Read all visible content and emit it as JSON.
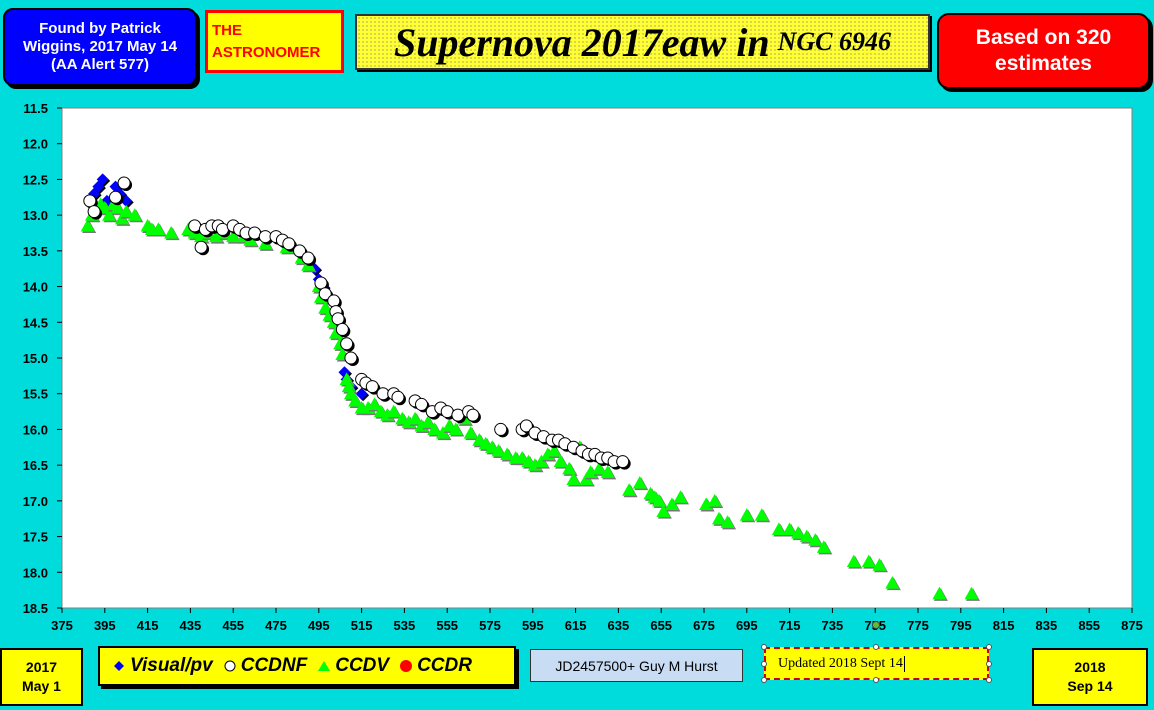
{
  "header": {
    "found_line1": "Found by Patrick",
    "found_line2": "Wiggins, 2017 May 14",
    "found_line3": "(AA Alert 577)",
    "astro_line1": "THE",
    "astro_line2": "ASTRONOMER",
    "title_main": "Supernova 2017eaw in",
    "title_small": "NGC 6946",
    "based_line1": "Based on 320",
    "based_line2": "estimates"
  },
  "footer": {
    "start_year": "2017",
    "start_day": "May 1",
    "end_year": "2018",
    "end_day": "Sep 14",
    "jd_label": "JD2457500+ Guy M Hurst",
    "updated_label": "Updated 2018 Sept 14"
  },
  "legend": [
    {
      "label": "Visual/pv",
      "marker": "diamond",
      "color": "#0000ff"
    },
    {
      "label": "CCDNF",
      "marker": "circle-open",
      "color": "#ffffff"
    },
    {
      "label": "CCDV",
      "marker": "triangle",
      "color": "#00ff00"
    },
    {
      "label": "CCDR",
      "marker": "circle",
      "color": "#ff0000"
    }
  ],
  "colors": {
    "background": "#00dcdc",
    "plot_bg": "#ffffff"
  },
  "chart_data": {
    "type": "scatter",
    "xlim": [
      375,
      875
    ],
    "ylim": [
      18.5,
      11.5
    ],
    "xticks": [
      375,
      395,
      415,
      435,
      455,
      475,
      495,
      515,
      535,
      555,
      575,
      595,
      615,
      635,
      655,
      675,
      695,
      715,
      735,
      755,
      775,
      795,
      815,
      835,
      855,
      875
    ],
    "yticks": [
      11.5,
      12.0,
      12.5,
      13.0,
      13.5,
      14.0,
      14.5,
      15.0,
      15.5,
      16.0,
      16.5,
      17.0,
      17.5,
      18.0,
      18.5
    ],
    "xlabel": "",
    "ylabel": "",
    "grid": false,
    "series": [
      {
        "name": "Visual/pv",
        "marker": "diamond",
        "color": "#0000ff",
        "points": [
          [
            390,
            12.7
          ],
          [
            392,
            12.6
          ],
          [
            394,
            12.5
          ],
          [
            396,
            12.8
          ],
          [
            398,
            12.9
          ],
          [
            400,
            12.6
          ],
          [
            402,
            12.7
          ],
          [
            405,
            12.8
          ],
          [
            493,
            13.75
          ],
          [
            495,
            13.9
          ],
          [
            497,
            14.0
          ],
          [
            507,
            15.2
          ],
          [
            508,
            15.3
          ],
          [
            510,
            15.4
          ],
          [
            515,
            15.5
          ]
        ]
      },
      {
        "name": "CCDNF",
        "marker": "circle-open",
        "color": "#ffffff",
        "points": [
          [
            388,
            12.8
          ],
          [
            390,
            12.95
          ],
          [
            400,
            12.75
          ],
          [
            404,
            12.55
          ],
          [
            437,
            13.15
          ],
          [
            440,
            13.45
          ],
          [
            442,
            13.2
          ],
          [
            445,
            13.15
          ],
          [
            448,
            13.15
          ],
          [
            450,
            13.2
          ],
          [
            455,
            13.15
          ],
          [
            458,
            13.2
          ],
          [
            461,
            13.25
          ],
          [
            465,
            13.25
          ],
          [
            470,
            13.3
          ],
          [
            475,
            13.3
          ],
          [
            478,
            13.35
          ],
          [
            481,
            13.4
          ],
          [
            486,
            13.5
          ],
          [
            490,
            13.6
          ],
          [
            496,
            13.95
          ],
          [
            498,
            14.1
          ],
          [
            502,
            14.2
          ],
          [
            503,
            14.35
          ],
          [
            504,
            14.45
          ],
          [
            506,
            14.6
          ],
          [
            508,
            14.8
          ],
          [
            510,
            15.0
          ],
          [
            515,
            15.3
          ],
          [
            517,
            15.35
          ],
          [
            520,
            15.4
          ],
          [
            525,
            15.5
          ],
          [
            530,
            15.5
          ],
          [
            532,
            15.55
          ],
          [
            540,
            15.6
          ],
          [
            543,
            15.65
          ],
          [
            548,
            15.75
          ],
          [
            552,
            15.7
          ],
          [
            555,
            15.75
          ],
          [
            560,
            15.8
          ],
          [
            565,
            15.75
          ],
          [
            567,
            15.8
          ],
          [
            580,
            16.0
          ],
          [
            590,
            16.0
          ],
          [
            592,
            15.95
          ],
          [
            596,
            16.05
          ],
          [
            600,
            16.1
          ],
          [
            604,
            16.15
          ],
          [
            607,
            16.15
          ],
          [
            610,
            16.2
          ],
          [
            614,
            16.25
          ],
          [
            618,
            16.3
          ],
          [
            621,
            16.35
          ],
          [
            624,
            16.35
          ],
          [
            627,
            16.4
          ],
          [
            630,
            16.4
          ],
          [
            633,
            16.45
          ],
          [
            637,
            16.45
          ]
        ]
      },
      {
        "name": "CCDV",
        "marker": "triangle",
        "color": "#00ff00",
        "points": [
          [
            387,
            13.15
          ],
          [
            389,
            13.0
          ],
          [
            391,
            12.9
          ],
          [
            393,
            12.85
          ],
          [
            395,
            12.9
          ],
          [
            397,
            13.0
          ],
          [
            399,
            12.85
          ],
          [
            401,
            12.9
          ],
          [
            403,
            13.05
          ],
          [
            405,
            12.95
          ],
          [
            409,
            13.0
          ],
          [
            415,
            13.15
          ],
          [
            417,
            13.2
          ],
          [
            420,
            13.2
          ],
          [
            426,
            13.25
          ],
          [
            434,
            13.2
          ],
          [
            437,
            13.25
          ],
          [
            440,
            13.3
          ],
          [
            443,
            13.25
          ],
          [
            447,
            13.3
          ],
          [
            451,
            13.25
          ],
          [
            455,
            13.3
          ],
          [
            460,
            13.3
          ],
          [
            463,
            13.35
          ],
          [
            470,
            13.4
          ],
          [
            480,
            13.45
          ],
          [
            487,
            13.6
          ],
          [
            490,
            13.7
          ],
          [
            495,
            14.0
          ],
          [
            496,
            14.15
          ],
          [
            498,
            14.3
          ],
          [
            500,
            14.4
          ],
          [
            502,
            14.5
          ],
          [
            503,
            14.65
          ],
          [
            505,
            14.8
          ],
          [
            506,
            14.95
          ],
          [
            508,
            15.3
          ],
          [
            509,
            15.4
          ],
          [
            510,
            15.5
          ],
          [
            512,
            15.6
          ],
          [
            515,
            15.7
          ],
          [
            518,
            15.7
          ],
          [
            521,
            15.65
          ],
          [
            524,
            15.75
          ],
          [
            527,
            15.8
          ],
          [
            530,
            15.75
          ],
          [
            534,
            15.85
          ],
          [
            537,
            15.9
          ],
          [
            540,
            15.85
          ],
          [
            543,
            15.95
          ],
          [
            546,
            15.9
          ],
          [
            549,
            16.0
          ],
          [
            553,
            16.05
          ],
          [
            556,
            15.95
          ],
          [
            559,
            16.0
          ],
          [
            563,
            15.85
          ],
          [
            566,
            16.05
          ],
          [
            570,
            16.15
          ],
          [
            573,
            16.2
          ],
          [
            576,
            16.25
          ],
          [
            579,
            16.3
          ],
          [
            583,
            16.35
          ],
          [
            587,
            16.4
          ],
          [
            590,
            16.4
          ],
          [
            593,
            16.45
          ],
          [
            596,
            16.5
          ],
          [
            599,
            16.45
          ],
          [
            602,
            16.35
          ],
          [
            605,
            16.3
          ],
          [
            608,
            16.45
          ],
          [
            612,
            16.55
          ],
          [
            614,
            16.7
          ],
          [
            617,
            16.25
          ],
          [
            620,
            16.7
          ],
          [
            622,
            16.6
          ],
          [
            626,
            16.55
          ],
          [
            630,
            16.6
          ],
          [
            640,
            16.85
          ],
          [
            645,
            16.75
          ],
          [
            650,
            16.9
          ],
          [
            652,
            16.95
          ],
          [
            654,
            17.0
          ],
          [
            656,
            17.15
          ],
          [
            660,
            17.05
          ],
          [
            664,
            16.95
          ],
          [
            676,
            17.05
          ],
          [
            680,
            17.0
          ],
          [
            682,
            17.25
          ],
          [
            686,
            17.3
          ],
          [
            695,
            17.2
          ],
          [
            702,
            17.2
          ],
          [
            710,
            17.4
          ],
          [
            715,
            17.4
          ],
          [
            719,
            17.45
          ],
          [
            723,
            17.5
          ],
          [
            727,
            17.55
          ],
          [
            731,
            17.65
          ],
          [
            745,
            17.85
          ],
          [
            752,
            17.85
          ],
          [
            757,
            17.9
          ],
          [
            763,
            18.15
          ],
          [
            785,
            18.3
          ],
          [
            800,
            18.3
          ]
        ]
      },
      {
        "name": "CCDR",
        "marker": "circle",
        "color": "#ff0000",
        "points": []
      }
    ]
  }
}
